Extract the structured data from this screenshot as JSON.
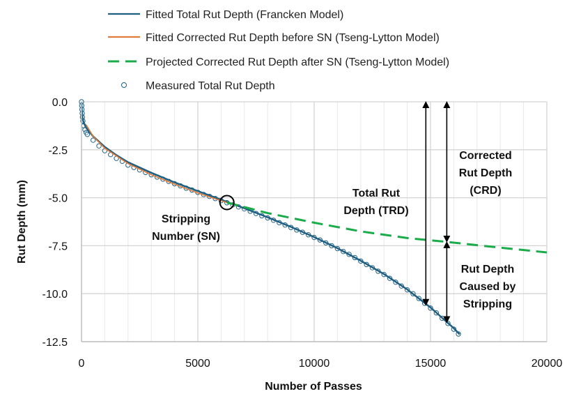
{
  "chart_data": {
    "type": "line",
    "xlabel": "Number of Passes",
    "ylabel": "Rut Depth (mm)",
    "xlim": [
      0,
      20000
    ],
    "ylim": [
      -12.5,
      0
    ],
    "xticks": [
      0,
      5000,
      10000,
      15000,
      20000
    ],
    "yticks": [
      0.0,
      -2.5,
      -5.0,
      -7.5,
      -10.0,
      -12.5
    ],
    "ytick_labels": [
      "0.0",
      "-2.5",
      "-5.0",
      "-7.5",
      "-10.0",
      "-12.5"
    ],
    "grid": true,
    "legend_placement": "top",
    "series": [
      {
        "name": "Fitted Total Rut Depth (Francken Model)",
        "style": "solid",
        "color": "#1f5f82",
        "points": [
          [
            0,
            0
          ],
          [
            20,
            -0.5
          ],
          [
            50,
            -0.9
          ],
          [
            100,
            -1.1
          ],
          [
            200,
            -1.35
          ],
          [
            500,
            -1.8
          ],
          [
            1000,
            -2.35
          ],
          [
            1500,
            -2.78
          ],
          [
            2000,
            -3.15
          ],
          [
            3000,
            -3.7
          ],
          [
            4000,
            -4.2
          ],
          [
            5000,
            -4.65
          ],
          [
            6000,
            -5.1
          ],
          [
            7000,
            -5.55
          ],
          [
            8000,
            -6.02
          ],
          [
            9000,
            -6.52
          ],
          [
            10000,
            -7.05
          ],
          [
            11000,
            -7.63
          ],
          [
            12000,
            -8.28
          ],
          [
            13000,
            -8.98
          ],
          [
            14000,
            -9.78
          ],
          [
            15000,
            -10.72
          ],
          [
            16000,
            -11.8
          ],
          [
            16250,
            -12.12
          ]
        ]
      },
      {
        "name": "Fitted Corrected Rut Depth before SN (Tseng-Lytton Model)",
        "style": "solid",
        "color": "#e07b39",
        "points": [
          [
            200,
            -1.2
          ],
          [
            500,
            -1.8
          ],
          [
            1000,
            -2.42
          ],
          [
            2000,
            -3.22
          ],
          [
            3000,
            -3.8
          ],
          [
            4000,
            -4.3
          ],
          [
            5000,
            -4.75
          ],
          [
            6250,
            -5.25
          ]
        ]
      },
      {
        "name": "Projected Corrected Rut Depth after SN (Tseng-Lytton Model)",
        "style": "dashed",
        "color": "#1aab4a",
        "points": [
          [
            6250,
            -5.25
          ],
          [
            8000,
            -5.8
          ],
          [
            10000,
            -6.3
          ],
          [
            12000,
            -6.75
          ],
          [
            14000,
            -7.1
          ],
          [
            15700,
            -7.3
          ],
          [
            18000,
            -7.6
          ],
          [
            20000,
            -7.85
          ]
        ]
      },
      {
        "name": "Measured Total Rut Depth",
        "style": "marker",
        "color": "#1f5f82",
        "points": [
          [
            0,
            0
          ],
          [
            10,
            -0.2
          ],
          [
            20,
            -0.4
          ],
          [
            30,
            -0.6
          ],
          [
            40,
            -0.8
          ],
          [
            60,
            -1.0
          ],
          [
            100,
            -1.25
          ],
          [
            150,
            -1.45
          ],
          [
            200,
            -1.6
          ],
          [
            250,
            -1.7
          ],
          [
            500,
            -2.0
          ],
          [
            750,
            -2.3
          ],
          [
            1000,
            -2.55
          ],
          [
            1250,
            -2.75
          ],
          [
            1500,
            -2.95
          ],
          [
            1750,
            -3.1
          ],
          [
            2000,
            -3.3
          ],
          [
            2250,
            -3.42
          ],
          [
            2500,
            -3.55
          ],
          [
            2750,
            -3.68
          ],
          [
            3000,
            -3.8
          ],
          [
            3250,
            -3.92
          ],
          [
            3500,
            -4.03
          ],
          [
            3750,
            -4.15
          ],
          [
            4000,
            -4.27
          ],
          [
            4250,
            -4.38
          ],
          [
            4500,
            -4.5
          ],
          [
            4750,
            -4.6
          ],
          [
            5000,
            -4.72
          ],
          [
            5250,
            -4.83
          ],
          [
            5500,
            -4.93
          ],
          [
            5750,
            -5.04
          ],
          [
            6000,
            -5.15
          ],
          [
            6250,
            -5.26
          ],
          [
            6500,
            -5.37
          ],
          [
            6750,
            -5.48
          ],
          [
            7000,
            -5.58
          ],
          [
            7250,
            -5.7
          ],
          [
            7500,
            -5.82
          ],
          [
            7750,
            -5.94
          ],
          [
            8000,
            -6.05
          ],
          [
            8250,
            -6.17
          ],
          [
            8500,
            -6.3
          ],
          [
            8750,
            -6.42
          ],
          [
            9000,
            -6.55
          ],
          [
            9250,
            -6.68
          ],
          [
            9500,
            -6.8
          ],
          [
            9750,
            -6.93
          ],
          [
            10000,
            -7.07
          ],
          [
            10250,
            -7.2
          ],
          [
            10500,
            -7.35
          ],
          [
            10750,
            -7.5
          ],
          [
            11000,
            -7.65
          ],
          [
            11250,
            -7.8
          ],
          [
            11500,
            -7.95
          ],
          [
            11750,
            -8.12
          ],
          [
            12000,
            -8.3
          ],
          [
            12250,
            -8.48
          ],
          [
            12500,
            -8.65
          ],
          [
            12750,
            -8.83
          ],
          [
            13000,
            -9.0
          ],
          [
            13250,
            -9.2
          ],
          [
            13500,
            -9.4
          ],
          [
            13750,
            -9.6
          ],
          [
            14000,
            -9.8
          ],
          [
            14250,
            -10.0
          ],
          [
            14500,
            -10.25
          ],
          [
            14750,
            -10.5
          ],
          [
            15000,
            -10.75
          ],
          [
            15250,
            -11.0
          ],
          [
            15500,
            -11.28
          ],
          [
            15750,
            -11.55
          ],
          [
            16000,
            -11.85
          ],
          [
            16200,
            -12.1
          ]
        ]
      }
    ],
    "annotations": {
      "sn_label": [
        "Stripping",
        "Number (SN)"
      ],
      "sn_point": [
        6250,
        -5.25
      ],
      "trd_label": [
        "Total Rut",
        "Depth (TRD)"
      ],
      "crd_label": [
        "Corrected",
        "Rut Depth",
        "(CRD)"
      ],
      "strip_label": [
        "Rut Depth",
        "Caused by",
        "Stripping"
      ],
      "trd_arrow": {
        "x": 14800,
        "from": 0,
        "to": -10.6
      },
      "crd_arrow": {
        "x": 15700,
        "from": 0,
        "to": -7.3
      },
      "strip_arrow": {
        "x": 15700,
        "from": -7.3,
        "to": -11.5
      }
    }
  }
}
